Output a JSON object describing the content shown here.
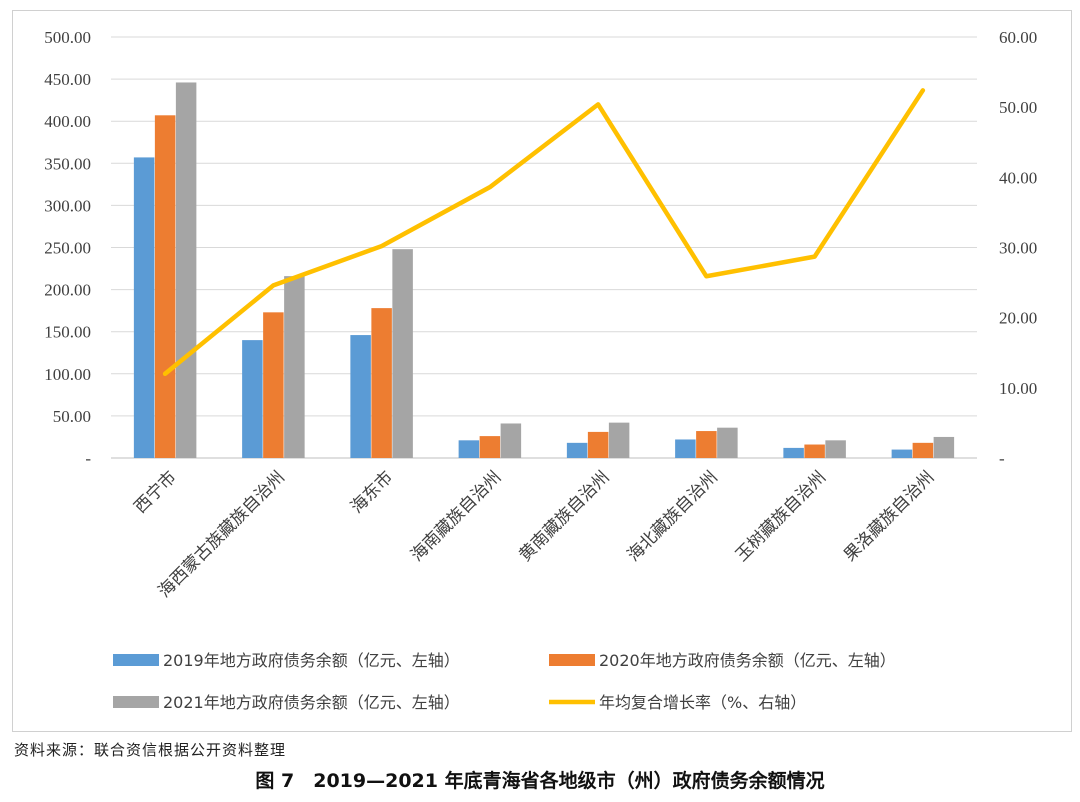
{
  "source_note": "资料来源：联合资信根据公开资料整理",
  "figure_caption": "图 7　2019—2021 年底青海省各地级市（州）政府债务余额情况",
  "colors": {
    "s2019": "#5B9BD5",
    "s2020": "#ED7D31",
    "s2021": "#A5A5A5",
    "growth": "#FFC000",
    "grid": "#D9D9D9",
    "axis": "#BFBFBF"
  },
  "chart_data": {
    "type": "bar",
    "categories": [
      "西宁市",
      "海西蒙古族藏族自治州",
      "海东市",
      "海南藏族自治州",
      "黄南藏族自治州",
      "海北藏族自治州",
      "玉树藏族自治州",
      "果洛藏族自治州"
    ],
    "series": [
      {
        "name": "2019年地方政府债务余额（亿元、左轴）",
        "type": "bar",
        "axis": "left",
        "values": [
          357,
          140,
          146,
          21,
          18,
          22,
          12,
          10
        ]
      },
      {
        "name": "2020年地方政府债务余额（亿元、左轴）",
        "type": "bar",
        "axis": "left",
        "values": [
          407,
          173,
          178,
          26,
          31,
          32,
          16,
          18
        ]
      },
      {
        "name": "2021年地方政府债务余额（亿元、左轴）",
        "type": "bar",
        "axis": "left",
        "values": [
          446,
          216,
          248,
          41,
          42,
          36,
          21,
          25
        ]
      },
      {
        "name": "年均复合增长率（%、右轴）",
        "type": "line",
        "axis": "right",
        "values": [
          12.0,
          24.6,
          30.2,
          38.6,
          50.4,
          25.9,
          28.7,
          52.4
        ]
      }
    ],
    "y_left": {
      "min": 0,
      "max": 500,
      "ticks": [
        "-",
        "50.00",
        "100.00",
        "150.00",
        "200.00",
        "250.00",
        "300.00",
        "350.00",
        "400.00",
        "450.00",
        "500.00"
      ]
    },
    "y_right": {
      "min": 0,
      "max": 60,
      "ticks": [
        "-",
        "10.00",
        "20.00",
        "30.00",
        "40.00",
        "50.00",
        "60.00"
      ]
    },
    "grid": true,
    "legend_position": "bottom"
  }
}
